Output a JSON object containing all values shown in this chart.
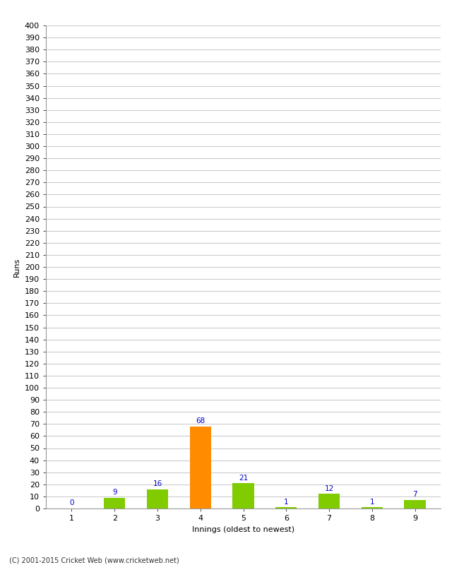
{
  "xlabel": "Innings (oldest to newest)",
  "ylabel": "Runs",
  "categories": [
    "1",
    "2",
    "3",
    "4",
    "5",
    "6",
    "7",
    "8",
    "9"
  ],
  "values": [
    0,
    9,
    16,
    68,
    21,
    1,
    12,
    1,
    7
  ],
  "bar_colors": [
    "#80cc00",
    "#80cc00",
    "#80cc00",
    "#ff8c00",
    "#80cc00",
    "#80cc00",
    "#80cc00",
    "#80cc00",
    "#80cc00"
  ],
  "ylim": [
    0,
    400
  ],
  "ytick_step": 10,
  "label_color": "#0000cc",
  "label_fontsize": 7.5,
  "axis_fontsize": 8,
  "ylabel_fontsize": 8,
  "xlabel_fontsize": 8,
  "background_color": "#ffffff",
  "grid_color": "#cccccc",
  "footer": "(C) 2001-2015 Cricket Web (www.cricketweb.net)"
}
